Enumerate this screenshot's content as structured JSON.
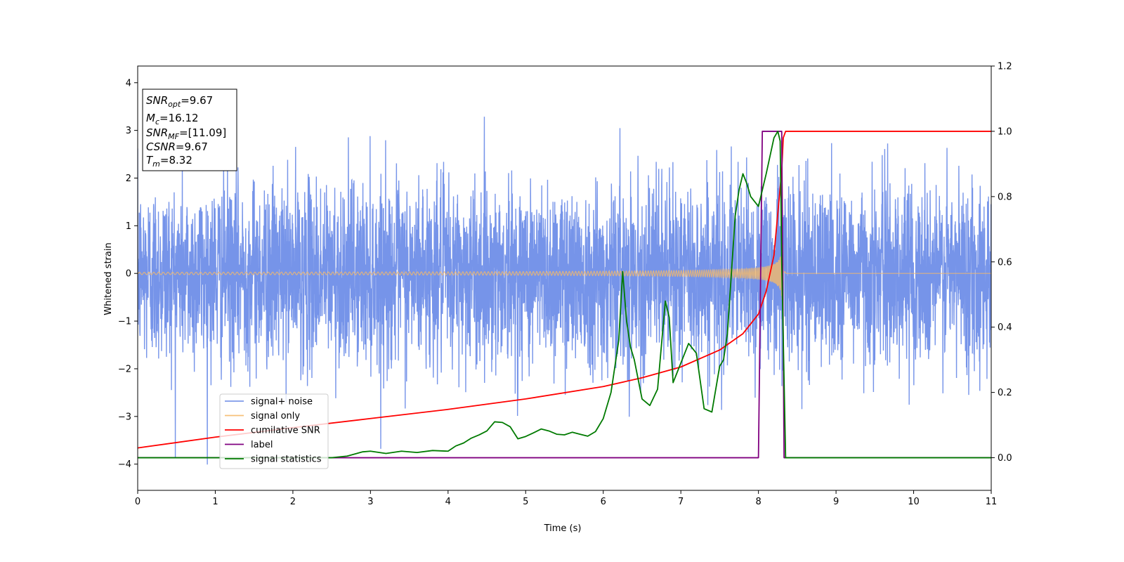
{
  "chart_data": {
    "type": "line",
    "title": "",
    "xlabel": "Time (s)",
    "ylabel": "Whitened strain",
    "xlim": [
      0,
      11
    ],
    "ylim_left": [
      -4.55,
      4.35
    ],
    "ylim_right": [
      -0.1,
      1.2
    ],
    "x_ticks": [
      "0",
      "1",
      "2",
      "3",
      "4",
      "5",
      "6",
      "7",
      "8",
      "9",
      "10",
      "11"
    ],
    "y_left_ticks": [
      "4",
      "3",
      "2",
      "1",
      "0",
      "−1",
      "−2",
      "−3",
      "−4"
    ],
    "y_left_tick_values": [
      4,
      3,
      2,
      1,
      0,
      -1,
      -2,
      -3,
      -4
    ],
    "y_right_ticks": [
      "1.2",
      "1.0",
      "0.8",
      "0.6",
      "0.4",
      "0.2",
      "0.0"
    ],
    "y_right_tick_values": [
      1.2,
      1.0,
      0.8,
      0.6,
      0.4,
      0.2,
      0.0
    ],
    "grid": false,
    "legend_position": "lower-left",
    "series": [
      {
        "name": "signal+ noise",
        "color": "#6f8ee8",
        "axis": "left",
        "description_type": "noise",
        "std": 0.95,
        "x_range": [
          0,
          11
        ]
      },
      {
        "name": "signal only",
        "color": "#f5b96a",
        "axis": "left",
        "description_type": "chirp",
        "merger_time": 8.32,
        "x_range": [
          0,
          8.35
        ]
      },
      {
        "name": "cumilative SNR",
        "color": "#ff0000",
        "axis": "right",
        "x": [
          0,
          1,
          2,
          3,
          4,
          5,
          6,
          6.5,
          7,
          7.5,
          7.8,
          8.0,
          8.1,
          8.2,
          8.3,
          8.32,
          8.35,
          11
        ],
        "y": [
          0.03,
          0.063,
          0.092,
          0.12,
          0.148,
          0.18,
          0.218,
          0.245,
          0.278,
          0.33,
          0.38,
          0.44,
          0.51,
          0.62,
          0.88,
          0.98,
          1.0,
          1.0
        ]
      },
      {
        "name": "label",
        "color": "#800080",
        "axis": "right",
        "x": [
          0,
          8.0,
          8.05,
          8.3,
          8.33,
          11
        ],
        "y": [
          0,
          0,
          1.0,
          1.0,
          0,
          0
        ]
      },
      {
        "name": "signal statistics",
        "color": "#007a00",
        "axis": "right",
        "x": [
          0,
          0.5,
          1,
          1.5,
          2,
          2.5,
          2.7,
          2.9,
          3.0,
          3.2,
          3.4,
          3.6,
          3.8,
          4.0,
          4.1,
          4.2,
          4.3,
          4.4,
          4.5,
          4.6,
          4.7,
          4.8,
          4.9,
          5.0,
          5.1,
          5.2,
          5.3,
          5.4,
          5.5,
          5.6,
          5.7,
          5.8,
          5.9,
          6.0,
          6.1,
          6.15,
          6.2,
          6.25,
          6.3,
          6.35,
          6.4,
          6.5,
          6.6,
          6.7,
          6.8,
          6.85,
          6.9,
          6.95,
          7.0,
          7.1,
          7.2,
          7.3,
          7.4,
          7.5,
          7.55,
          7.6,
          7.65,
          7.7,
          7.75,
          7.8,
          7.85,
          7.9,
          8.0,
          8.05,
          8.1,
          8.2,
          8.25,
          8.28,
          8.3,
          8.35,
          8.4,
          9,
          10,
          11
        ],
        "y": [
          0.0,
          0.0,
          0.0,
          0.0,
          0.0,
          0.0,
          0.005,
          0.018,
          0.02,
          0.013,
          0.02,
          0.016,
          0.022,
          0.02,
          0.036,
          0.045,
          0.06,
          0.07,
          0.082,
          0.11,
          0.108,
          0.095,
          0.058,
          0.065,
          0.076,
          0.088,
          0.082,
          0.072,
          0.07,
          0.078,
          0.072,
          0.066,
          0.08,
          0.12,
          0.2,
          0.28,
          0.36,
          0.57,
          0.42,
          0.34,
          0.3,
          0.18,
          0.16,
          0.21,
          0.48,
          0.43,
          0.23,
          0.26,
          0.29,
          0.35,
          0.32,
          0.15,
          0.14,
          0.28,
          0.3,
          0.38,
          0.56,
          0.74,
          0.82,
          0.87,
          0.84,
          0.8,
          0.77,
          0.82,
          0.87,
          0.98,
          1.0,
          0.97,
          0.6,
          0.0,
          0.0,
          0.0,
          0.0,
          0.0
        ]
      }
    ],
    "info_box": {
      "lines": [
        {
          "label": "SNR",
          "sub": "opt",
          "value": "=9.67"
        },
        {
          "label": "M",
          "sub": "c",
          "value": "=16.12"
        },
        {
          "label": "SNR",
          "sub": "MF",
          "value": "=[11.09]"
        },
        {
          "label": "CSNR",
          "sub": "",
          "value": "=9.67"
        },
        {
          "label": "T",
          "sub": "m",
          "value": "=8.32"
        }
      ]
    }
  }
}
